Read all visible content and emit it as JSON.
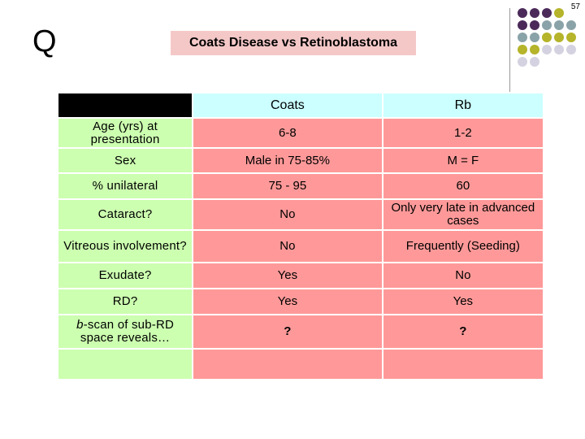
{
  "slide": {
    "page_number": "57",
    "q_letter": "Q",
    "title": "Coats Disease vs Retinoblastoma"
  },
  "table": {
    "header": {
      "label": "",
      "coats": "Coats",
      "rb": "Rb"
    },
    "rows": [
      {
        "label": "Age (yrs) at presentation",
        "coats": "6-8",
        "rb": "1-2"
      },
      {
        "label": "Sex",
        "coats": "Male in 75-85%",
        "rb": "M = F"
      },
      {
        "label": "% unilateral",
        "coats": "75 - 95",
        "rb": "60"
      },
      {
        "label": "Cataract?",
        "coats": "No",
        "rb": "Only very late in advanced cases"
      },
      {
        "label": "Vitreous involvement?",
        "coats": "No",
        "rb": "Frequently (Seeding)"
      },
      {
        "label": "Exudate?",
        "coats": "Yes",
        "rb": "No"
      },
      {
        "label": "RD?",
        "coats": "Yes",
        "rb": "Yes"
      },
      {
        "label_italic": "b",
        "label_rest": "-scan of sub-RD space reveals…",
        "coats": "?",
        "rb": "?"
      },
      {
        "label": "",
        "coats": "",
        "rb": ""
      }
    ]
  },
  "colors": {
    "label_column": "#ccffb0",
    "value_cells": "#ff9999",
    "header_cells": "#ccffff",
    "header_corner": "#000000",
    "title_box": "#f5c8c8",
    "dot_purple": "#4b2a5a",
    "dot_teal": "#8aa3a8",
    "dot_olive": "#b5b42a",
    "dot_lavender": "#d4d2e0"
  }
}
